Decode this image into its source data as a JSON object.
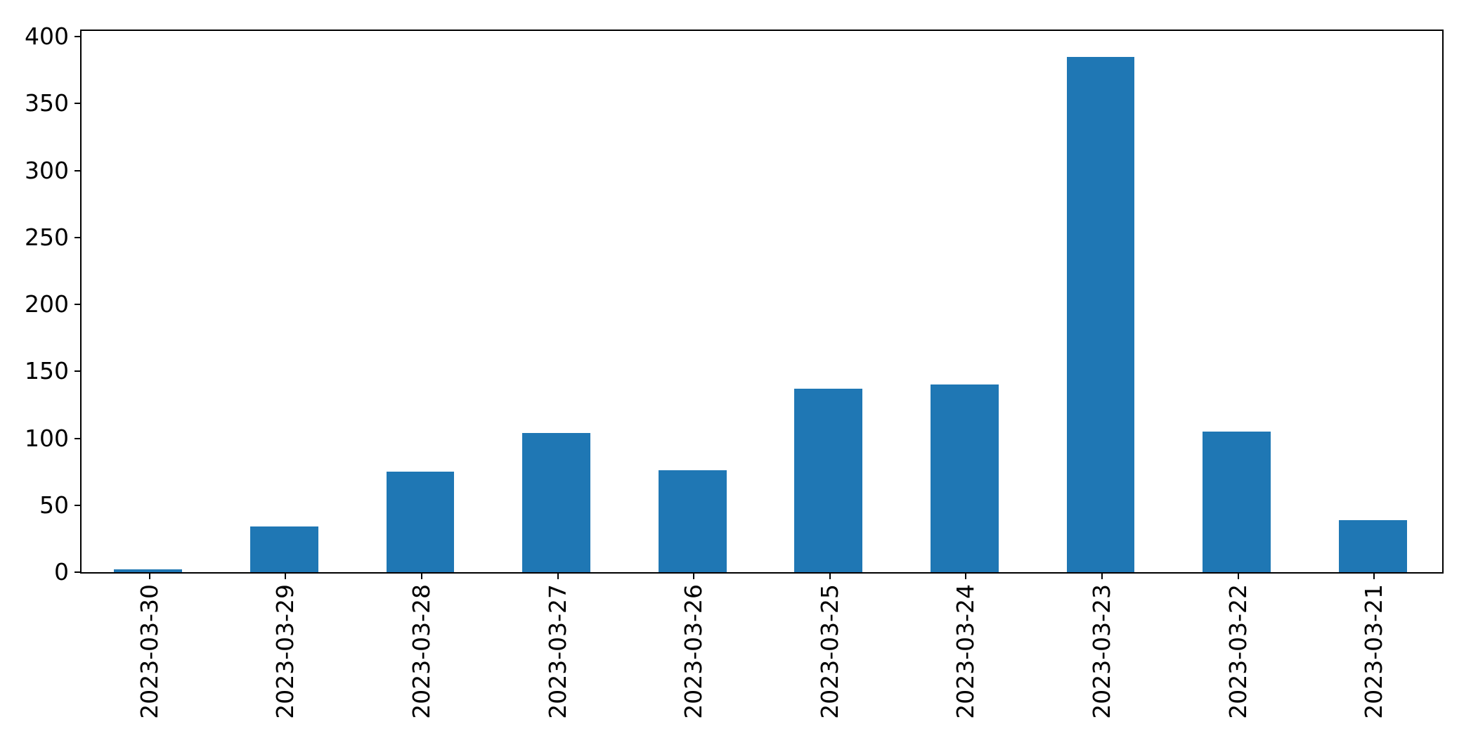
{
  "figure": {
    "background_color": "#ffffff",
    "spine_color": "#000000",
    "tick_color": "#000000",
    "tick_label_color": "#000000"
  },
  "chart_data": {
    "type": "bar",
    "title": "",
    "xlabel": "",
    "ylabel": "",
    "categories": [
      "2023-03-30",
      "2023-03-29",
      "2023-03-28",
      "2023-03-27",
      "2023-03-26",
      "2023-03-25",
      "2023-03-24",
      "2023-03-23",
      "2023-03-22",
      "2023-03-21"
    ],
    "values": [
      2,
      34,
      75,
      104,
      76,
      137,
      140,
      385,
      105,
      39
    ],
    "yticks": [
      0,
      50,
      100,
      150,
      200,
      250,
      300,
      350,
      400
    ],
    "ylim": [
      0,
      404.25
    ],
    "bar_color": "#1f77b4",
    "bar_width_fraction": 0.5,
    "x_tick_label_rotation_deg": 90,
    "grid": false,
    "legend_position": "none"
  }
}
